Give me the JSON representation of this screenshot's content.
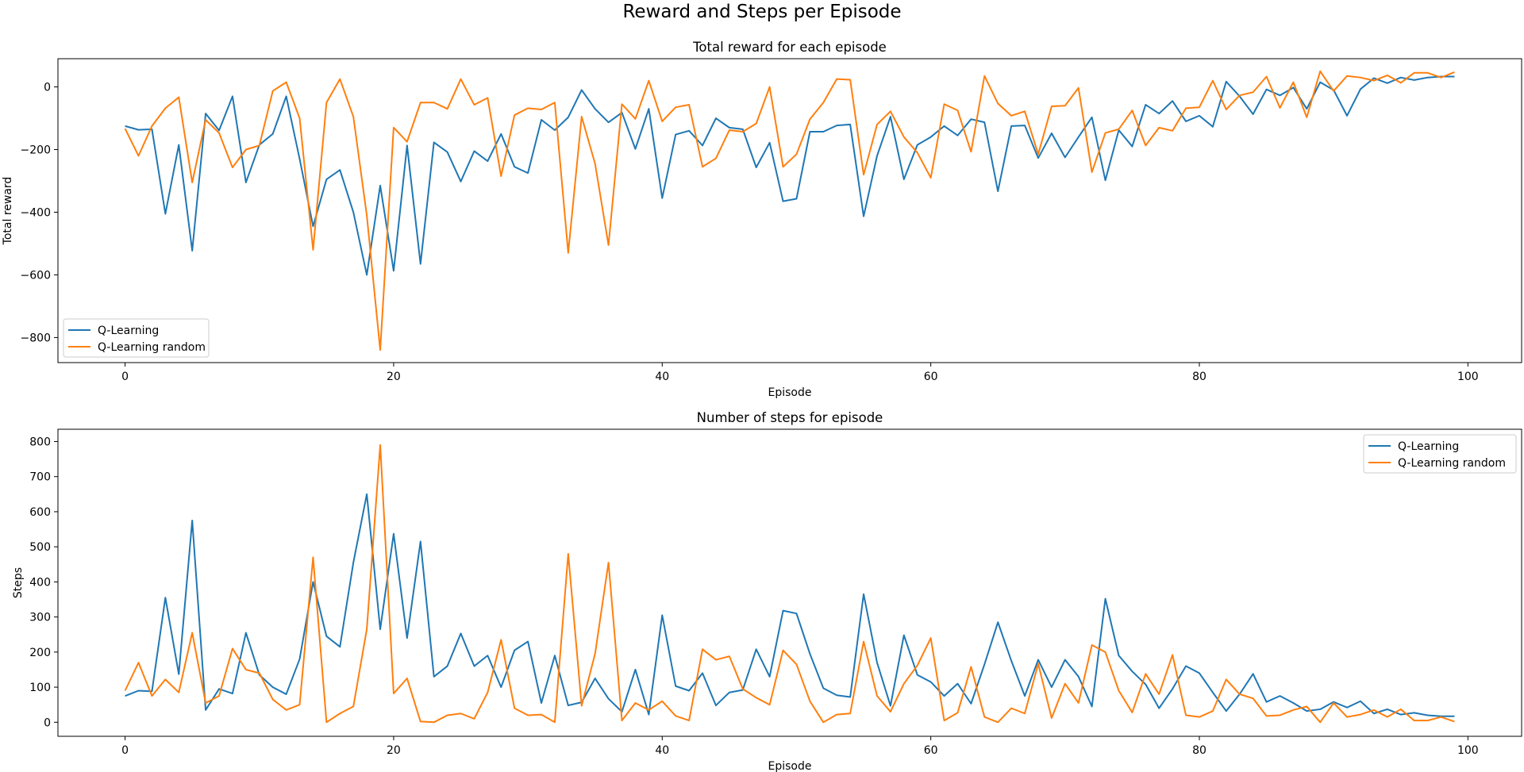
{
  "figure": {
    "title": "Reward and Steps per Episode"
  },
  "colors": {
    "q_learning": "#1f77b4",
    "q_learning_random": "#ff7f0e",
    "axes": "#000000",
    "background": "#ffffff"
  },
  "chart_data": [
    {
      "type": "line",
      "title": "Total reward for each episode",
      "xlabel": "Episode",
      "ylabel": "Total reward",
      "xlim": [
        -5,
        104
      ],
      "ylim": [
        -880,
        90
      ],
      "xticks": [
        0,
        20,
        40,
        60,
        80,
        100
      ],
      "yticks": [
        0,
        -200,
        -400,
        -600,
        -800
      ],
      "grid": false,
      "legend_position": "lower-left",
      "series": [
        {
          "name": "Q-Learning",
          "color": "#1f77b4",
          "values": [
            -125,
            -137,
            -135,
            -405,
            -185,
            -523,
            -85,
            -139,
            -30,
            -305,
            -185,
            -150,
            -30,
            -230,
            -445,
            -295,
            -265,
            -400,
            -600,
            -315,
            -587,
            -187,
            -565,
            -177,
            -208,
            -302,
            -205,
            -237,
            -150,
            -255,
            -275,
            -105,
            -138,
            -97,
            -10,
            -70,
            -113,
            -82,
            -198,
            -70,
            -355,
            -152,
            -140,
            -187,
            -100,
            -130,
            -135,
            -257,
            -178,
            -365,
            -357,
            -143,
            -143,
            -123,
            -120,
            -413,
            -220,
            -95,
            -295,
            -185,
            -160,
            -125,
            -155,
            -103,
            -113,
            -333,
            -125,
            -123,
            -227,
            -148,
            -225,
            -160,
            -97,
            -298,
            -138,
            -190,
            -57,
            -85,
            -45,
            -110,
            -92,
            -127,
            17,
            -30,
            -87,
            -8,
            -27,
            -2,
            -70,
            15,
            -10,
            -92,
            -7,
            28,
            12,
            30,
            22,
            30,
            33,
            33
          ]
        },
        {
          "name": "Q-Learning random",
          "color": "#ff7f0e",
          "values": [
            -133,
            -220,
            -125,
            -68,
            -33,
            -305,
            -105,
            -147,
            -257,
            -200,
            -187,
            -13,
            15,
            -100,
            -520,
            -50,
            25,
            -95,
            -410,
            -840,
            -130,
            -175,
            -50,
            -50,
            -70,
            25,
            -57,
            -35,
            -285,
            -90,
            -68,
            -72,
            -50,
            -530,
            -95,
            -245,
            -505,
            -55,
            -102,
            20,
            -110,
            -65,
            -57,
            -255,
            -228,
            -138,
            -143,
            -117,
            0,
            -255,
            -215,
            -103,
            -50,
            25,
            23,
            -280,
            -120,
            -78,
            -160,
            -210,
            -290,
            -55,
            -75,
            -207,
            35,
            -53,
            -92,
            -78,
            -215,
            -62,
            -60,
            -3,
            -272,
            -147,
            -135,
            -75,
            -187,
            -130,
            -140,
            -68,
            -65,
            20,
            -72,
            -27,
            -17,
            33,
            -67,
            15,
            -97,
            50,
            -13,
            35,
            30,
            20,
            37,
            13,
            45,
            45,
            30,
            47
          ]
        }
      ]
    },
    {
      "type": "line",
      "title": "Number of steps for episode",
      "xlabel": "Episode",
      "ylabel": "Steps",
      "xlim": [
        -5,
        104
      ],
      "ylim": [
        -40,
        835
      ],
      "xticks": [
        0,
        20,
        40,
        60,
        80,
        100
      ],
      "yticks": [
        0,
        100,
        200,
        300,
        400,
        500,
        600,
        700,
        800
      ],
      "grid": false,
      "legend_position": "top-right",
      "series": [
        {
          "name": "Q-Learning",
          "color": "#1f77b4",
          "values": [
            75,
            90,
            88,
            355,
            137,
            575,
            35,
            95,
            82,
            255,
            135,
            100,
            80,
            180,
            400,
            245,
            215,
            455,
            650,
            265,
            537,
            240,
            515,
            130,
            160,
            253,
            160,
            190,
            100,
            205,
            230,
            55,
            190,
            48,
            57,
            125,
            67,
            30,
            150,
            22,
            305,
            103,
            90,
            140,
            48,
            85,
            92,
            208,
            130,
            318,
            310,
            195,
            97,
            77,
            72,
            365,
            170,
            47,
            248,
            135,
            115,
            75,
            110,
            53,
            165,
            285,
            175,
            75,
            178,
            100,
            178,
            130,
            45,
            352,
            190,
            145,
            108,
            40,
            95,
            160,
            140,
            85,
            32,
            80,
            138,
            58,
            75,
            55,
            32,
            37,
            58,
            42,
            60,
            25,
            37,
            22,
            27,
            20,
            17,
            17
          ]
        },
        {
          "name": "Q-Learning random",
          "color": "#ff7f0e",
          "values": [
            90,
            170,
            75,
            122,
            85,
            255,
            55,
            75,
            210,
            150,
            140,
            65,
            35,
            50,
            470,
            0,
            25,
            45,
            265,
            790,
            82,
            125,
            2,
            0,
            20,
            25,
            10,
            85,
            235,
            40,
            20,
            22,
            0,
            480,
            47,
            195,
            455,
            5,
            55,
            35,
            60,
            18,
            5,
            208,
            178,
            188,
            95,
            70,
            50,
            205,
            165,
            60,
            0,
            22,
            25,
            230,
            75,
            30,
            110,
            162,
            240,
            5,
            27,
            158,
            15,
            0,
            40,
            25,
            167,
            12,
            110,
            55,
            220,
            200,
            90,
            28,
            138,
            80,
            192,
            20,
            15,
            32,
            122,
            80,
            68,
            18,
            20,
            35,
            45,
            0,
            55,
            15,
            22,
            35,
            15,
            37,
            5,
            5,
            15,
            2
          ]
        }
      ]
    }
  ]
}
